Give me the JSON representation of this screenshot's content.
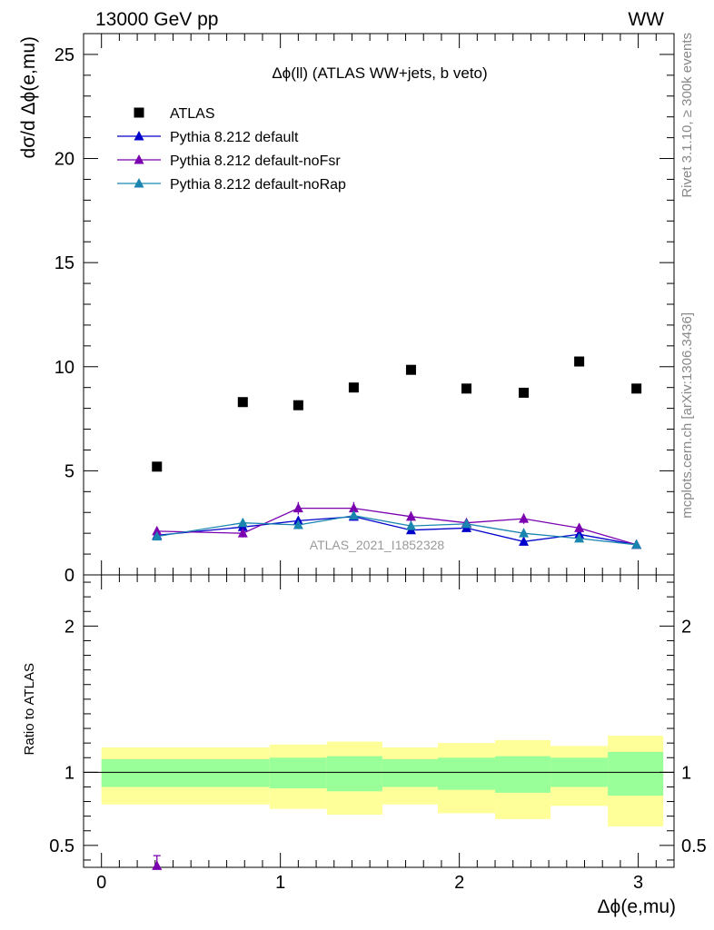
{
  "header": {
    "left": "13000 GeV pp",
    "right": "WW"
  },
  "side_labels": {
    "rivet": "Rivet 3.1.10, ≥ 300k events",
    "source": "mcplots.cern.ch [arXiv:1306.3436]"
  },
  "colors": {
    "atlas": "#000000",
    "default": "#0000cc",
    "noFsr": "#7a00b0",
    "noRap": "#1a86b0",
    "band_outer": "#ffff99",
    "band_inner": "#99ff99"
  },
  "chart_data": [
    {
      "type": "scatter",
      "title": "Δϕ(ll) (ATLAS WW+jets, b veto)",
      "ylabel": "dσ/d Δϕ(e,mu)",
      "xlim": [
        -0.1,
        3.2
      ],
      "ylim": [
        0,
        26
      ],
      "yticks": [
        0,
        5,
        10,
        15,
        20,
        25
      ],
      "watermark": "ATLAS_2021_I1852328",
      "legend_position": "top-left",
      "series": [
        {
          "name": "ATLAS",
          "marker": "square",
          "color": "#000000",
          "x": [
            0.31,
            0.79,
            1.1,
            1.41,
            1.73,
            2.04,
            2.36,
            2.67,
            2.99
          ],
          "y": [
            5.2,
            8.3,
            8.15,
            9.0,
            9.85,
            8.95,
            8.75,
            10.25,
            8.95
          ]
        },
        {
          "name": "Pythia 8.212 default",
          "marker": "triangle",
          "color": "#0000cc",
          "x": [
            0.31,
            0.79,
            1.1,
            1.41,
            1.73,
            2.04,
            2.36,
            2.67,
            2.99
          ],
          "y": [
            1.9,
            2.3,
            2.6,
            2.8,
            2.15,
            2.25,
            1.6,
            1.95,
            1.45
          ],
          "err": [
            0.15,
            0.15,
            0.2,
            0.2,
            0.15,
            0.15,
            0.15,
            0.15,
            0.1
          ]
        },
        {
          "name": "Pythia 8.212 default-noFsr",
          "marker": "triangle",
          "color": "#7a00b0",
          "x": [
            0.31,
            0.79,
            1.1,
            1.41,
            1.73,
            2.04,
            2.36,
            2.67,
            2.99
          ],
          "y": [
            2.1,
            2.0,
            3.2,
            3.2,
            2.8,
            2.5,
            2.7,
            2.25,
            1.45
          ],
          "err": [
            0.2,
            0.2,
            0.3,
            0.3,
            0.25,
            0.2,
            0.25,
            0.2,
            0.1
          ]
        },
        {
          "name": "Pythia 8.212 default-noRap",
          "marker": "triangle",
          "color": "#1a86b0",
          "x": [
            0.31,
            0.79,
            1.1,
            1.41,
            1.73,
            2.04,
            2.36,
            2.67,
            2.99
          ],
          "y": [
            1.85,
            2.5,
            2.4,
            2.85,
            2.35,
            2.45,
            2.0,
            1.75,
            1.45
          ],
          "err": [
            0.15,
            0.2,
            0.2,
            0.2,
            0.15,
            0.15,
            0.15,
            0.15,
            0.1
          ]
        }
      ]
    },
    {
      "type": "line",
      "ylabel": "Ratio to ATLAS",
      "xlabel": "Δϕ(e,mu)",
      "xlim": [
        -0.1,
        3.2
      ],
      "ylim": [
        0.35,
        2.35
      ],
      "yticks": [
        0.5,
        1,
        2
      ],
      "xticks": [
        0,
        1,
        2,
        3
      ],
      "reference_line": 1,
      "bands": {
        "x_edges": [
          0.0,
          0.94,
          1.26,
          1.57,
          1.88,
          2.2,
          2.51,
          2.83,
          3.14
        ],
        "outer_low": [
          0.78,
          0.75,
          0.71,
          0.78,
          0.72,
          0.68,
          0.77,
          0.63
        ],
        "outer_high": [
          1.17,
          1.19,
          1.21,
          1.17,
          1.2,
          1.22,
          1.18,
          1.25
        ],
        "inner_low": [
          0.9,
          0.89,
          0.87,
          0.9,
          0.88,
          0.86,
          0.9,
          0.84
        ],
        "inner_high": [
          1.09,
          1.1,
          1.11,
          1.09,
          1.1,
          1.11,
          1.1,
          1.14
        ]
      },
      "points": [
        {
          "series": "Pythia 8.212 default-noFsr",
          "x": 0.31,
          "y": 0.36,
          "err_high": 0.43
        }
      ]
    }
  ]
}
